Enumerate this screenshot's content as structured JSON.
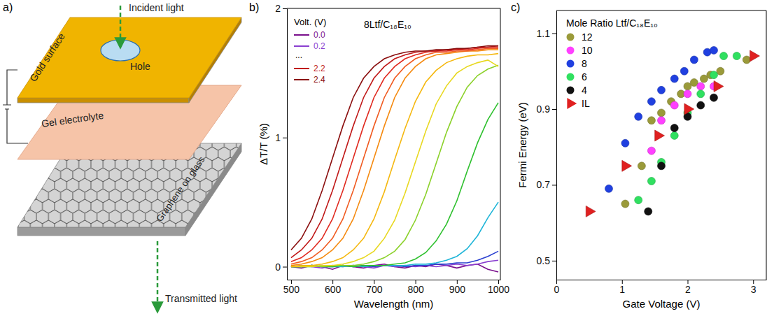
{
  "diagram": {
    "panel_label": "a)",
    "labels": {
      "incident": "Incident light",
      "gold": "Gold surface",
      "hole": "Hole",
      "gel": "Gel electrolyte",
      "graphene": "Graphene on glass",
      "transmitted": "Transmitted light"
    }
  },
  "chart_data": [
    {
      "type": "line",
      "panel_label": "b)",
      "x_label": "Wavelength (nm)",
      "y_label": "ΔT/T (%)",
      "legend_title": "Volt. (V)",
      "legend_ellipsis": "...",
      "legend": "top-left",
      "annotations": [
        "8Ltf/C₁₈E₁₀"
      ],
      "x": [
        500,
        525,
        550,
        575,
        600,
        625,
        650,
        675,
        700,
        725,
        750,
        775,
        800,
        825,
        850,
        875,
        900,
        925,
        950,
        975,
        1000
      ],
      "xlim": [
        490,
        1005
      ],
      "xticks": [
        500,
        600,
        700,
        800,
        900,
        1000
      ],
      "ylim": [
        -0.1,
        2
      ],
      "yticks": [
        0,
        1,
        2
      ],
      "series": [
        {
          "name": "0.0",
          "color": "#7a0f8c",
          "values": [
            0,
            -0.01,
            0.01,
            0,
            -0.02,
            0.01,
            0,
            -0.01,
            0.01,
            0.02,
            0,
            -0.01,
            0.01,
            0,
            0.02,
            0.01,
            -0.01,
            0.01,
            0.02,
            -0.02,
            -0.04
          ]
        },
        {
          "name": "0.2",
          "color": "#8a3fd0",
          "values": [
            0,
            0.01,
            0,
            -0.01,
            0.01,
            0,
            0.01,
            0,
            -0.01,
            0.01,
            0,
            0.01,
            0,
            0.01,
            0,
            0.01,
            0.02,
            0.01,
            0.02,
            0.04,
            0.05
          ]
        },
        {
          "color": "#2a3fd0",
          "values": [
            0,
            0,
            0.01,
            0,
            0,
            0.01,
            0,
            0.01,
            0,
            0.01,
            0.01,
            0,
            0.01,
            0.01,
            0.02,
            0.02,
            0.03,
            0.03,
            0.05,
            0.08,
            0.12
          ]
        },
        {
          "color": "#1fb5d8",
          "values": [
            0,
            0,
            0,
            0.01,
            0,
            0,
            0.01,
            0,
            0.01,
            0.01,
            0.01,
            0.01,
            0.02,
            0.02,
            0.03,
            0.05,
            0.08,
            0.14,
            0.24,
            0.38,
            0.5
          ]
        },
        {
          "color": "#2ec02e",
          "values": [
            0,
            0,
            0.01,
            0,
            0,
            0.01,
            0,
            0.01,
            0.01,
            0.01,
            0.02,
            0.03,
            0.06,
            0.11,
            0.2,
            0.33,
            0.51,
            0.74,
            0.96,
            1.14,
            1.27
          ]
        },
        {
          "color": "#8bd12a",
          "values": [
            0.01,
            0,
            0.01,
            0,
            0.01,
            0.01,
            0.01,
            0.02,
            0.04,
            0.07,
            0.12,
            0.21,
            0.36,
            0.56,
            0.8,
            1.04,
            1.24,
            1.39,
            1.48,
            1.53,
            1.56
          ]
        },
        {
          "color": "#e8d820",
          "values": [
            0,
            0,
            0,
            0.01,
            0.01,
            0.02,
            0.04,
            0.07,
            0.12,
            0.22,
            0.36,
            0.57,
            0.81,
            1.05,
            1.26,
            1.4,
            1.5,
            1.55,
            1.58,
            1.6,
            1.55
          ]
        },
        {
          "color": "#f5b810",
          "values": [
            0,
            0.01,
            0.01,
            0.02,
            0.04,
            0.07,
            0.13,
            0.22,
            0.37,
            0.58,
            0.83,
            1.07,
            1.28,
            1.43,
            1.52,
            1.58,
            1.61,
            1.63,
            1.64,
            1.64,
            1.65
          ]
        },
        {
          "color": "#f58a10",
          "values": [
            0.01,
            0.02,
            0.04,
            0.07,
            0.13,
            0.22,
            0.37,
            0.59,
            0.84,
            1.09,
            1.31,
            1.46,
            1.55,
            1.61,
            1.64,
            1.65,
            1.66,
            1.67,
            1.67,
            1.68,
            1.68
          ]
        },
        {
          "color": "#f05a20",
          "values": [
            0.02,
            0.04,
            0.07,
            0.13,
            0.22,
            0.37,
            0.59,
            0.84,
            1.09,
            1.31,
            1.46,
            1.55,
            1.61,
            1.64,
            1.66,
            1.66,
            1.67,
            1.67,
            1.68,
            1.69,
            1.69
          ]
        },
        {
          "color": "#e02a20",
          "values": [
            0.04,
            0.07,
            0.13,
            0.22,
            0.37,
            0.59,
            0.84,
            1.09,
            1.31,
            1.46,
            1.55,
            1.61,
            1.64,
            1.66,
            1.67,
            1.67,
            1.68,
            1.68,
            1.69,
            1.7,
            1.7
          ]
        },
        {
          "name": "2.2",
          "color": "#c01818",
          "values": [
            0.07,
            0.13,
            0.22,
            0.37,
            0.59,
            0.84,
            1.09,
            1.31,
            1.46,
            1.55,
            1.61,
            1.64,
            1.66,
            1.67,
            1.67,
            1.68,
            1.68,
            1.69,
            1.7,
            1.7,
            1.71
          ]
        },
        {
          "name": "2.4",
          "color": "#8b0f0f",
          "values": [
            0.13,
            0.22,
            0.37,
            0.59,
            0.84,
            1.09,
            1.31,
            1.46,
            1.55,
            1.61,
            1.64,
            1.66,
            1.67,
            1.67,
            1.68,
            1.68,
            1.69,
            1.69,
            1.7,
            1.71,
            1.71
          ]
        }
      ]
    },
    {
      "type": "scatter",
      "panel_label": "c)",
      "x_label": "Gate Voltage (V)",
      "y_label": "Fermi Energy (eV)",
      "legend_title": "Mole Ratio Ltf/C₁₈E₁₀",
      "legend": "top-left",
      "xlim": [
        0,
        3.2
      ],
      "xticks": [
        0,
        1,
        2,
        3
      ],
      "ylim": [
        0.45,
        1.16
      ],
      "yticks": [
        0.5,
        0.7,
        0.9,
        1.1
      ],
      "series": [
        {
          "name": "12",
          "color": "#9a9a3a",
          "marker": "circle",
          "x": [
            1.05,
            1.3,
            1.45,
            1.6,
            1.75,
            1.9,
            2.0,
            2.1,
            2.25,
            2.35,
            2.5,
            2.9
          ],
          "values": [
            0.65,
            0.75,
            0.87,
            0.89,
            0.92,
            0.94,
            0.96,
            0.97,
            0.98,
            0.99,
            1.0,
            1.03
          ]
        },
        {
          "name": "10",
          "color": "#ff40ff",
          "marker": "circle",
          "x": [
            1.45,
            1.6,
            1.8,
            2.0,
            2.2,
            2.4
          ],
          "values": [
            0.79,
            0.87,
            0.91,
            0.94,
            0.96,
            0.96
          ]
        },
        {
          "name": "8",
          "color": "#2040e0",
          "marker": "circle",
          "x": [
            0.8,
            1.05,
            1.25,
            1.45,
            1.6,
            1.8,
            1.95,
            2.1,
            2.3,
            2.4
          ],
          "values": [
            0.69,
            0.81,
            0.88,
            0.92,
            0.95,
            0.98,
            1.0,
            1.03,
            1.05,
            1.055
          ]
        },
        {
          "name": "6",
          "color": "#30e060",
          "marker": "circle",
          "x": [
            1.25,
            1.45,
            1.6,
            1.8,
            2.0,
            2.2,
            2.4,
            2.55,
            2.75
          ],
          "values": [
            0.66,
            0.71,
            0.76,
            0.83,
            0.89,
            0.94,
            0.99,
            1.04,
            1.04
          ]
        },
        {
          "name": "4",
          "color": "#111111",
          "marker": "circle",
          "x": [
            1.4,
            1.6,
            1.8,
            2.0,
            2.2,
            2.4
          ],
          "values": [
            0.63,
            0.75,
            0.85,
            0.88,
            0.91,
            0.93
          ]
        },
        {
          "name": "IL",
          "color": "#e02020",
          "marker": "triangle",
          "x": [
            0.5,
            1.05,
            1.55,
            2.0,
            2.45,
            3.0
          ],
          "values": [
            0.63,
            0.75,
            0.83,
            0.9,
            0.96,
            1.04
          ]
        }
      ]
    }
  ]
}
